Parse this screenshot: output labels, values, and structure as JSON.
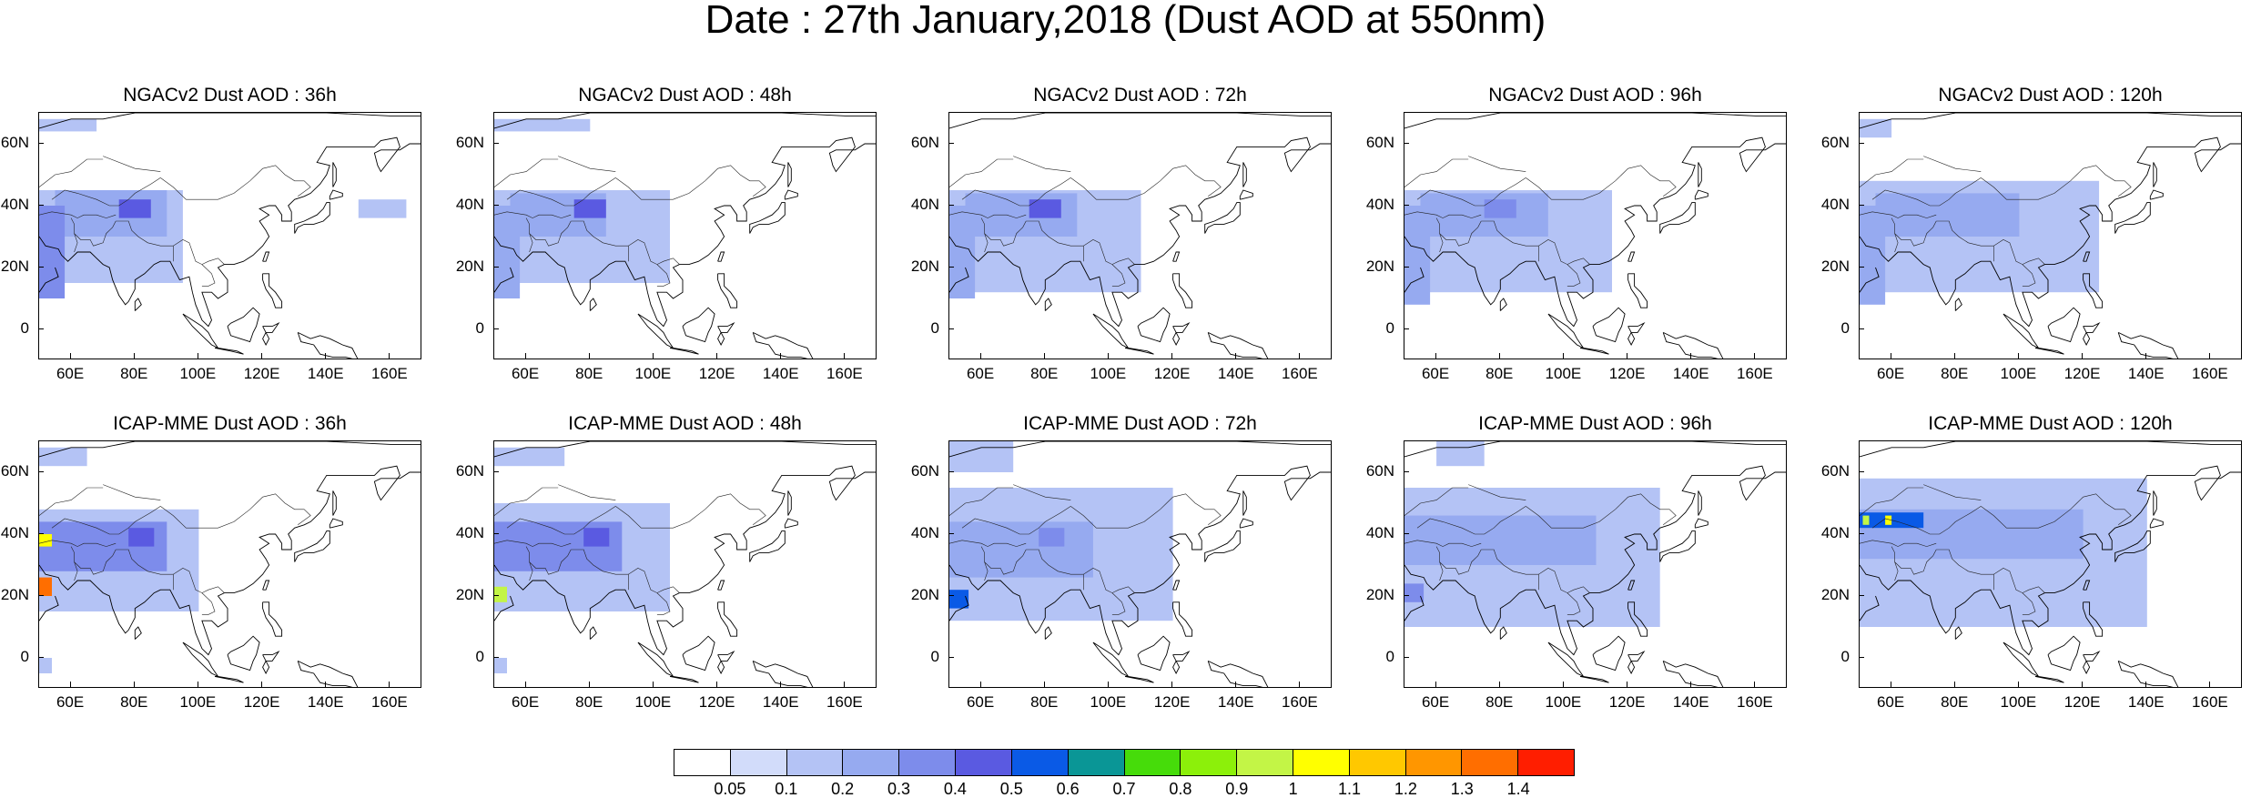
{
  "figure": {
    "title": "Date : 27th January,2018 (Dust AOD at 550nm)"
  },
  "axes": {
    "x_tick_labels": [
      "60E",
      "80E",
      "100E",
      "120E",
      "140E",
      "160E"
    ],
    "x_tick_values": [
      60,
      80,
      100,
      120,
      140,
      160
    ],
    "y_tick_labels": [
      "60N",
      "40N",
      "20N",
      "0"
    ],
    "y_tick_values": [
      60,
      40,
      20,
      0
    ],
    "lon_range": [
      50,
      170
    ],
    "lat_range": [
      -10,
      70
    ]
  },
  "panels": [
    {
      "title": "NGACv2 Dust AOD : 36h"
    },
    {
      "title": "NGACv2 Dust AOD : 48h"
    },
    {
      "title": "NGACv2 Dust AOD : 72h"
    },
    {
      "title": "NGACv2 Dust AOD : 96h"
    },
    {
      "title": "NGACv2 Dust AOD : 120h"
    },
    {
      "title": "ICAP-MME Dust AOD : 36h"
    },
    {
      "title": "ICAP-MME Dust AOD : 48h"
    },
    {
      "title": "ICAP-MME Dust AOD : 72h"
    },
    {
      "title": "ICAP-MME Dust AOD : 96h"
    },
    {
      "title": "ICAP-MME Dust AOD : 120h"
    }
  ],
  "colorbar": {
    "labels": [
      "0.05",
      "0.1",
      "0.2",
      "0.3",
      "0.4",
      "0.5",
      "0.6",
      "0.7",
      "0.8",
      "0.9",
      "1",
      "1.1",
      "1.2",
      "1.3",
      "1.4"
    ],
    "colors": [
      "#ffffff",
      "#d2dcfa",
      "#b4c3f5",
      "#96aaf0",
      "#7d8ceb",
      "#5a5ae1",
      "#0a5ae6",
      "#0a9696",
      "#46dc0a",
      "#8cf00a",
      "#c3f546",
      "#ffff00",
      "#ffc800",
      "#ff9600",
      "#ff6e00",
      "#ff1e00"
    ]
  },
  "chart_data": {
    "type": "heatmap",
    "title": "Date : 27th January,2018 (Dust AOD at 550nm)",
    "xlabel": "",
    "ylabel": "",
    "xlim": [
      50,
      170
    ],
    "ylim": [
      -10,
      70
    ],
    "panels": [
      {
        "title": "NGACv2 Dust AOD : 36h",
        "regions": [
          {
            "lon": [
              50,
              95
            ],
            "lat": [
              15,
              45
            ],
            "value": 0.15
          },
          {
            "lon": [
              55,
              90
            ],
            "lat": [
              30,
              45
            ],
            "value": 0.25
          },
          {
            "lon": [
              75,
              85
            ],
            "lat": [
              36,
              42
            ],
            "value": 0.4
          },
          {
            "lon": [
              50,
              58
            ],
            "lat": [
              10,
              40
            ],
            "value": 0.3
          },
          {
            "lon": [
              50,
              68
            ],
            "lat": [
              64,
              68
            ],
            "value": 0.1
          },
          {
            "lon": [
              150,
              165
            ],
            "lat": [
              36,
              42
            ],
            "value": 0.1
          }
        ]
      },
      {
        "title": "NGACv2 Dust AOD : 48h",
        "regions": [
          {
            "lon": [
              50,
              105
            ],
            "lat": [
              15,
              45
            ],
            "value": 0.15
          },
          {
            "lon": [
              55,
              85
            ],
            "lat": [
              30,
              44
            ],
            "value": 0.25
          },
          {
            "lon": [
              75,
              85
            ],
            "lat": [
              36,
              42
            ],
            "value": 0.45
          },
          {
            "lon": [
              50,
              58
            ],
            "lat": [
              10,
              40
            ],
            "value": 0.25
          },
          {
            "lon": [
              50,
              80
            ],
            "lat": [
              64,
              68
            ],
            "value": 0.1
          }
        ]
      },
      {
        "title": "NGACv2 Dust AOD : 72h",
        "regions": [
          {
            "lon": [
              50,
              110
            ],
            "lat": [
              12,
              45
            ],
            "value": 0.15
          },
          {
            "lon": [
              55,
              90
            ],
            "lat": [
              30,
              44
            ],
            "value": 0.25
          },
          {
            "lon": [
              75,
              85
            ],
            "lat": [
              36,
              42
            ],
            "value": 0.4
          },
          {
            "lon": [
              50,
              58
            ],
            "lat": [
              10,
              40
            ],
            "value": 0.25
          }
        ]
      },
      {
        "title": "NGACv2 Dust AOD : 96h",
        "regions": [
          {
            "lon": [
              50,
              115
            ],
            "lat": [
              12,
              45
            ],
            "value": 0.15
          },
          {
            "lon": [
              55,
              95
            ],
            "lat": [
              30,
              44
            ],
            "value": 0.2
          },
          {
            "lon": [
              75,
              85
            ],
            "lat": [
              36,
              42
            ],
            "value": 0.3
          },
          {
            "lon": [
              50,
              58
            ],
            "lat": [
              8,
              40
            ],
            "value": 0.2
          }
        ]
      },
      {
        "title": "NGACv2 Dust AOD : 120h",
        "regions": [
          {
            "lon": [
              50,
              125
            ],
            "lat": [
              12,
              48
            ],
            "value": 0.15
          },
          {
            "lon": [
              55,
              100
            ],
            "lat": [
              30,
              44
            ],
            "value": 0.2
          },
          {
            "lon": [
              75,
              85
            ],
            "lat": [
              36,
              42
            ],
            "value": 0.25
          },
          {
            "lon": [
              50,
              58
            ],
            "lat": [
              8,
              40
            ],
            "value": 0.2
          },
          {
            "lon": [
              50,
              60
            ],
            "lat": [
              62,
              68
            ],
            "value": 0.1
          }
        ]
      },
      {
        "title": "ICAP-MME Dust AOD : 36h",
        "regions": [
          {
            "lon": [
              50,
              100
            ],
            "lat": [
              15,
              48
            ],
            "value": 0.15
          },
          {
            "lon": [
              50,
              90
            ],
            "lat": [
              28,
              44
            ],
            "value": 0.3
          },
          {
            "lon": [
              78,
              86
            ],
            "lat": [
              36,
              42
            ],
            "value": 0.45
          },
          {
            "lon": [
              50,
              54
            ],
            "lat": [
              36,
              40
            ],
            "value": 1.0
          },
          {
            "lon": [
              50,
              54
            ],
            "lat": [
              20,
              26
            ],
            "value": 1.3
          },
          {
            "lon": [
              50,
              65
            ],
            "lat": [
              62,
              68
            ],
            "value": 0.1
          },
          {
            "lon": [
              50,
              54
            ],
            "lat": [
              -5,
              0
            ],
            "value": 0.1
          }
        ]
      },
      {
        "title": "ICAP-MME Dust AOD : 48h",
        "regions": [
          {
            "lon": [
              50,
              105
            ],
            "lat": [
              15,
              50
            ],
            "value": 0.15
          },
          {
            "lon": [
              50,
              90
            ],
            "lat": [
              28,
              44
            ],
            "value": 0.3
          },
          {
            "lon": [
              78,
              86
            ],
            "lat": [
              36,
              42
            ],
            "value": 0.45
          },
          {
            "lon": [
              50,
              54
            ],
            "lat": [
              18,
              23
            ],
            "value": 0.9
          },
          {
            "lon": [
              50,
              72
            ],
            "lat": [
              62,
              68
            ],
            "value": 0.1
          },
          {
            "lon": [
              50,
              54
            ],
            "lat": [
              -5,
              0
            ],
            "value": 0.1
          }
        ]
      },
      {
        "title": "ICAP-MME Dust AOD : 72h",
        "regions": [
          {
            "lon": [
              50,
              120
            ],
            "lat": [
              12,
              55
            ],
            "value": 0.15
          },
          {
            "lon": [
              50,
              95
            ],
            "lat": [
              26,
              44
            ],
            "value": 0.25
          },
          {
            "lon": [
              78,
              86
            ],
            "lat": [
              36,
              42
            ],
            "value": 0.35
          },
          {
            "lon": [
              50,
              56
            ],
            "lat": [
              16,
              22
            ],
            "value": 0.5
          },
          {
            "lon": [
              50,
              70
            ],
            "lat": [
              60,
              70
            ],
            "value": 0.1
          }
        ]
      },
      {
        "title": "ICAP-MME Dust AOD : 96h",
        "regions": [
          {
            "lon": [
              50,
              130
            ],
            "lat": [
              10,
              55
            ],
            "value": 0.15
          },
          {
            "lon": [
              50,
              110
            ],
            "lat": [
              30,
              46
            ],
            "value": 0.25
          },
          {
            "lon": [
              50,
              56
            ],
            "lat": [
              18,
              24
            ],
            "value": 0.35
          },
          {
            "lon": [
              60,
              75
            ],
            "lat": [
              62,
              70
            ],
            "value": 0.1
          }
        ]
      },
      {
        "title": "ICAP-MME Dust AOD : 120h",
        "regions": [
          {
            "lon": [
              50,
              140
            ],
            "lat": [
              10,
              58
            ],
            "value": 0.15
          },
          {
            "lon": [
              50,
              120
            ],
            "lat": [
              32,
              48
            ],
            "value": 0.25
          },
          {
            "lon": [
              50,
              70
            ],
            "lat": [
              42,
              47
            ],
            "value": 0.5
          },
          {
            "lon": [
              51,
              53
            ],
            "lat": [
              43,
              46
            ],
            "value": 0.9
          },
          {
            "lon": [
              58,
              60
            ],
            "lat": [
              43,
              46
            ],
            "value": 1.0
          }
        ]
      }
    ]
  }
}
